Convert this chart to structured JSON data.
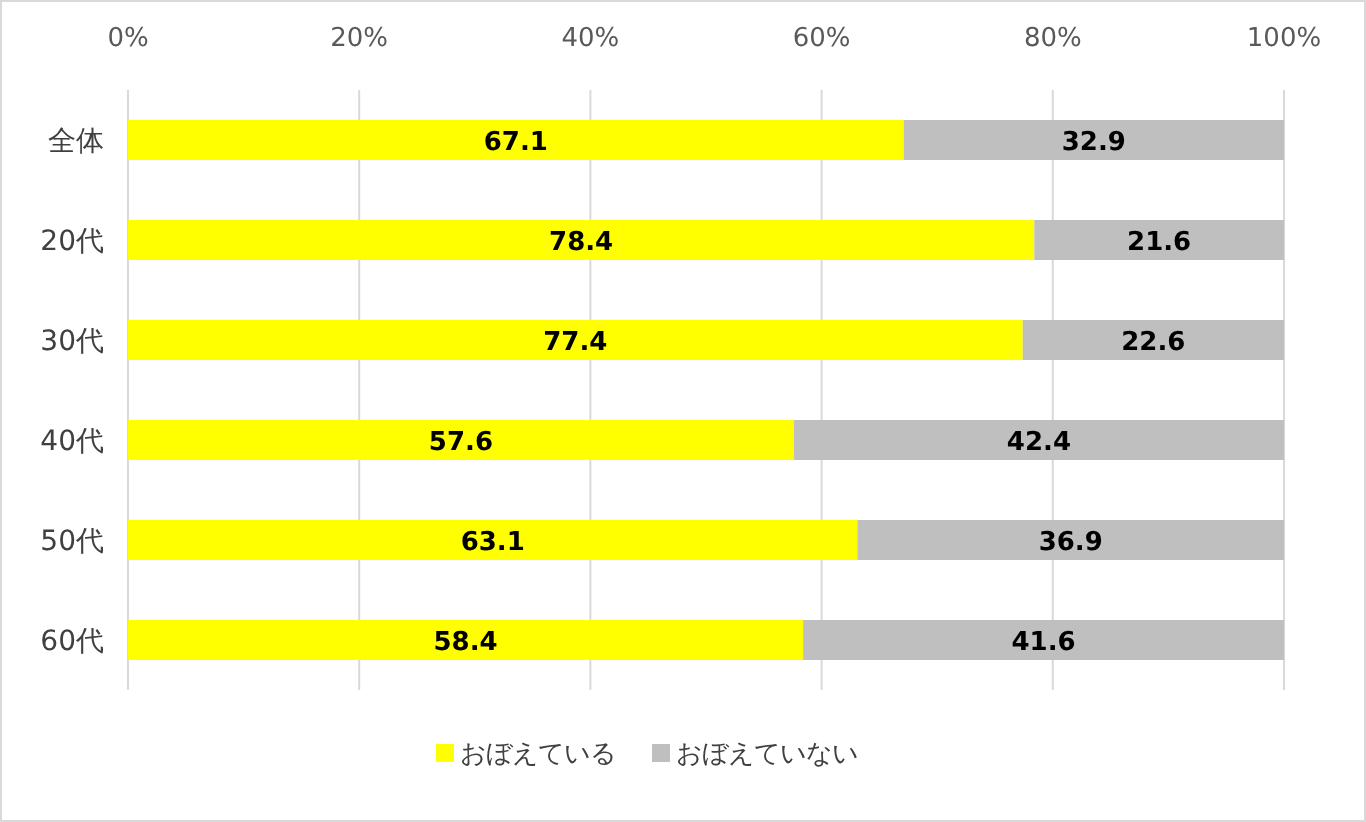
{
  "chart_data": {
    "type": "bar",
    "orientation": "horizontal",
    "stacked": true,
    "data_labels": true,
    "grid": "x",
    "legend": "bottom",
    "categories": [
      "全体",
      "20代",
      "30代",
      "40代",
      "50代",
      "60代"
    ],
    "series": [
      {
        "name": "おぼえている",
        "color": "#ffff00",
        "values": [
          67.1,
          78.4,
          77.4,
          57.6,
          63.1,
          58.4
        ]
      },
      {
        "name": "おぼえていない",
        "color": "#bfbfbf",
        "values": [
          32.9,
          21.6,
          22.6,
          42.4,
          36.9,
          41.6
        ]
      }
    ],
    "xlim": [
      0,
      100
    ],
    "xticks": [
      {
        "value": 0,
        "label": "0%"
      },
      {
        "value": 20,
        "label": "20%"
      },
      {
        "value": 40,
        "label": "40%"
      },
      {
        "value": 60,
        "label": "60%"
      },
      {
        "value": 80,
        "label": "80%"
      },
      {
        "value": 100,
        "label": "100%"
      }
    ]
  }
}
